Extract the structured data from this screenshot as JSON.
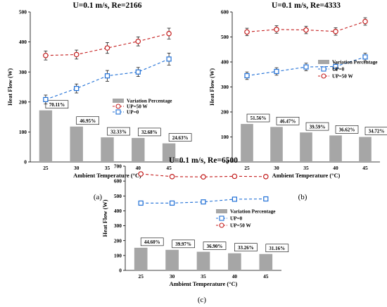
{
  "chart_data": [
    {
      "type": "bar",
      "panel": "(a)",
      "title": "U=0.1 m/s, Re=2166",
      "xlabel": "Ambient Temperature  (°C)",
      "ylabel": "Heat Flow (W)",
      "categories": [
        "25",
        "30",
        "35",
        "40",
        "45"
      ],
      "ylim": [
        0,
        500
      ],
      "yticks": [
        0,
        100,
        200,
        300,
        400,
        500
      ],
      "legend_position": "middle-right",
      "legend_order": [
        "UP=50 W",
        "UP=0",
        "Variation Percentage"
      ],
      "series": [
        {
          "name": "Variation Percentage",
          "kind": "bar",
          "color": "#a6a6a6",
          "values": [
            172,
            118,
            82,
            80,
            62
          ],
          "labels": [
            "70.11%",
            "46.95%",
            "32.33%",
            "32.68%",
            "24.63%"
          ]
        },
        {
          "name": "UP=0",
          "kind": "line",
          "color": "#1f6fd6",
          "marker": "square",
          "values": [
            208,
            245,
            287,
            300,
            343
          ],
          "errors": [
            15,
            15,
            18,
            15,
            20
          ]
        },
        {
          "name": "UP=50 W",
          "kind": "line",
          "color": "#c41e1e",
          "marker": "circle",
          "values": [
            355,
            358,
            380,
            402,
            428
          ],
          "errors": [
            15,
            15,
            18,
            15,
            18
          ]
        }
      ]
    },
    {
      "type": "bar",
      "panel": "(b)",
      "title": "U=0.1 m/s, Re=4333",
      "xlabel": "Ambient Temperature  (°C)",
      "ylabel": "Heat Flow (W)",
      "categories": [
        "25",
        "30",
        "35",
        "40",
        "45"
      ],
      "ylim": [
        0,
        600
      ],
      "yticks": [
        0,
        100,
        200,
        300,
        400,
        500,
        600
      ],
      "legend_position": "middle-right",
      "legend_order": [
        "Variation Percentage",
        "UP=0",
        "UP=50 W"
      ],
      "series": [
        {
          "name": "Variation Percentage",
          "kind": "bar",
          "color": "#a6a6a6",
          "values": [
            152,
            140,
            118,
            106,
            100
          ],
          "labels": [
            "51.56%",
            "46.47%",
            "39.59%",
            "36.62%",
            "34.72%"
          ]
        },
        {
          "name": "UP=0",
          "kind": "line",
          "color": "#1f6fd6",
          "marker": "square",
          "values": [
            345,
            362,
            380,
            382,
            420
          ],
          "errors": [
            15,
            15,
            15,
            15,
            15
          ]
        },
        {
          "name": "UP=50 W",
          "kind": "line",
          "color": "#c41e1e",
          "marker": "circle",
          "values": [
            520,
            530,
            528,
            522,
            562
          ],
          "errors": [
            15,
            15,
            15,
            15,
            15
          ]
        }
      ]
    },
    {
      "type": "bar",
      "panel": "(c)",
      "title": "U=0.1 m/s, Re=6500",
      "xlabel": "Ambient Temperature  (°C)",
      "ylabel": "Heat Flow (W)",
      "categories": [
        "25",
        "30",
        "35",
        "40",
        "45"
      ],
      "ylim": [
        0,
        700
      ],
      "yticks": [
        0,
        100,
        200,
        300,
        400,
        500,
        600,
        700
      ],
      "legend_position": "middle-right",
      "legend_order": [
        "Variation Percentage",
        "UP=0",
        "UP=50 W"
      ],
      "series": [
        {
          "name": "Variation Percentage",
          "kind": "bar",
          "color": "#a6a6a6",
          "values": [
            152,
            138,
            125,
            115,
            110
          ],
          "labels": [
            "44.60%",
            "39.97%",
            "36.90%",
            "33.26%",
            "31.16%"
          ]
        },
        {
          "name": "UP=0",
          "kind": "line",
          "color": "#1f6fd6",
          "marker": "square",
          "values": [
            452,
            452,
            460,
            478,
            480
          ],
          "errors": [
            12,
            12,
            12,
            12,
            12
          ]
        },
        {
          "name": "UP=50 W",
          "kind": "line",
          "color": "#c41e1e",
          "marker": "circle",
          "values": [
            648,
            630,
            628,
            632,
            630
          ],
          "errors": [
            12,
            12,
            12,
            12,
            12
          ]
        }
      ]
    }
  ]
}
